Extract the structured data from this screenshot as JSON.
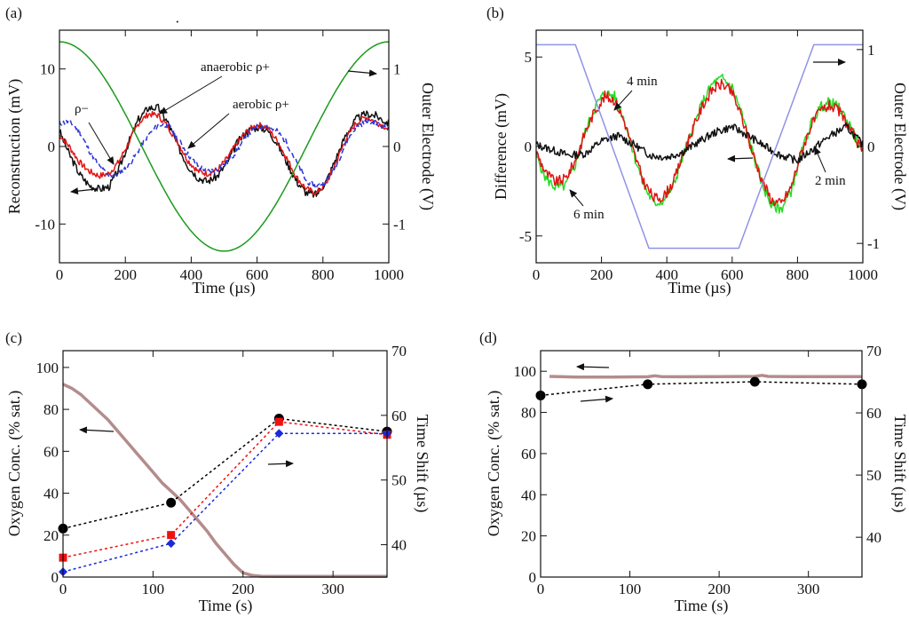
{
  "figure": {
    "title": ""
  },
  "chart_data": [
    {
      "id": "a",
      "type": "line",
      "panel_label": "(a)",
      "xlabel": "Time (µs)",
      "ylabel_left": "Reconstruction (mV)",
      "ylabel_right": "Outer Electrode (V)",
      "xlim": [
        0,
        1000
      ],
      "ylim_left": [
        -15,
        15
      ],
      "ylim_right": [
        -1.5,
        1.5
      ],
      "xticks": [
        0,
        200,
        400,
        600,
        800,
        1000
      ],
      "xtick_labels": [
        "0",
        "200",
        "400",
        "600",
        "800",
        "1000"
      ],
      "yticks_left": [
        -10,
        0,
        10
      ],
      "ytick_labels_left": [
        "-10",
        "0",
        "10"
      ],
      "yticks_right": [
        -1,
        0,
        1
      ],
      "ytick_labels_right": [
        "-1",
        "0",
        "1"
      ],
      "series": [
        {
          "name": "anaerobic ρ+",
          "axis": "left",
          "color": "#111111",
          "dash": "",
          "noise": 0.5,
          "seed": 3,
          "x": [
            0,
            30,
            60,
            90,
            120,
            150,
            180,
            210,
            240,
            270,
            300,
            330,
            360,
            390,
            420,
            450,
            480,
            510,
            540,
            570,
            600,
            630,
            660,
            690,
            720,
            750,
            780,
            810,
            840,
            870,
            900,
            930,
            960,
            990,
            1000
          ],
          "y": [
            2,
            -1,
            -3.5,
            -5,
            -5.5,
            -5.2,
            -3,
            0.5,
            3.5,
            5,
            5,
            3,
            0,
            -2.5,
            -4,
            -4.5,
            -3.8,
            -2,
            0.5,
            2,
            2.5,
            2.2,
            0.5,
            -2,
            -4.5,
            -6,
            -6.2,
            -4.5,
            -1.5,
            1.5,
            3.5,
            4.2,
            4,
            3.2,
            3
          ]
        },
        {
          "name": "red",
          "axis": "left",
          "color": "#e01414",
          "dash": "",
          "noise": 0.4,
          "seed": 7,
          "x": [
            0,
            30,
            60,
            90,
            120,
            150,
            180,
            210,
            240,
            270,
            300,
            330,
            360,
            390,
            420,
            450,
            480,
            510,
            540,
            570,
            600,
            630,
            660,
            690,
            720,
            750,
            780,
            810,
            840,
            870,
            900,
            930,
            960,
            990,
            1000
          ],
          "y": [
            1.5,
            0,
            -2,
            -3.2,
            -3.8,
            -3.5,
            -2,
            0.5,
            3,
            4.2,
            4,
            2.5,
            0.5,
            -1.8,
            -3.2,
            -3.5,
            -3,
            -1.5,
            0.5,
            2,
            2.8,
            2.5,
            0.8,
            -1.5,
            -4,
            -5.5,
            -6,
            -4.8,
            -2,
            1,
            3,
            3.8,
            3.2,
            2.5,
            2
          ]
        },
        {
          "name": "aerobic ρ+",
          "axis": "left",
          "color": "#2a35d6",
          "dash": "6,3",
          "noise": 0.35,
          "seed": 11,
          "x": [
            0,
            30,
            60,
            90,
            120,
            150,
            180,
            210,
            240,
            270,
            300,
            330,
            360,
            390,
            420,
            450,
            480,
            510,
            540,
            570,
            600,
            630,
            660,
            690,
            720,
            750,
            780,
            810,
            840,
            870,
            900,
            930,
            960,
            990,
            1000
          ],
          "y": [
            3,
            3.2,
            2,
            -0.5,
            -2.5,
            -3.8,
            -3.5,
            -2.5,
            -0.5,
            1.5,
            2.8,
            2.8,
            1,
            -1,
            -2.5,
            -3.2,
            -3,
            -2,
            -0.5,
            1.5,
            2.5,
            2.6,
            2,
            0.5,
            -2,
            -4.5,
            -5.2,
            -4.5,
            -2.5,
            0.5,
            2.5,
            3.2,
            3,
            2.5,
            2.2
          ]
        },
        {
          "name": "outer electrode",
          "axis": "right",
          "color": "#1c9a1c",
          "dash": "",
          "func": "cos",
          "amp": 1.35,
          "period": 1000,
          "phase": 0
        }
      ],
      "annotations": [
        {
          "text": "anaerobic ρ+"
        },
        {
          "text": "aerobic ρ+"
        },
        {
          "text": "ρ−"
        }
      ]
    },
    {
      "id": "b",
      "type": "line",
      "panel_label": "(b)",
      "xlabel": "Time (µs)",
      "ylabel_left": "Difference (mV)",
      "ylabel_right": "Outer Electrode (V)",
      "xlim": [
        0,
        1000
      ],
      "ylim_left": [
        -6.5,
        6.5
      ],
      "ylim_right": [
        -1.2,
        1.2
      ],
      "xticks": [
        0,
        200,
        400,
        600,
        800,
        1000
      ],
      "xtick_labels": [
        "0",
        "200",
        "400",
        "600",
        "800",
        "1000"
      ],
      "yticks_left": [
        -5,
        0,
        5
      ],
      "ytick_labels_left": [
        "-5",
        "0",
        "5"
      ],
      "yticks_right": [
        -1,
        0,
        1
      ],
      "ytick_labels_right": [
        "-1",
        "0",
        "1"
      ],
      "series": [
        {
          "name": "6 min",
          "axis": "left",
          "color": "#22dd22",
          "dash": "",
          "noise": 0.3,
          "seed": 5,
          "x": [
            0,
            30,
            60,
            90,
            120,
            150,
            180,
            210,
            240,
            270,
            300,
            330,
            360,
            390,
            420,
            450,
            480,
            510,
            540,
            570,
            600,
            630,
            660,
            690,
            720,
            750,
            780,
            810,
            840,
            870,
            900,
            930,
            960,
            990,
            1000
          ],
          "y": [
            -0.5,
            -1.8,
            -2.3,
            -2.2,
            -1,
            0.8,
            2.2,
            3,
            2.8,
            1.5,
            -0.5,
            -2.2,
            -3.2,
            -3,
            -2.2,
            -0.5,
            1,
            2.5,
            3.5,
            3.8,
            3.3,
            1.8,
            -0.2,
            -2,
            -3.3,
            -3.5,
            -2.5,
            -0.5,
            1.2,
            2.2,
            2.5,
            2.1,
            1.2,
            0,
            -0.5
          ]
        },
        {
          "name": "4 min",
          "axis": "left",
          "color": "#e01414",
          "dash": "",
          "noise": 0.3,
          "seed": 9,
          "x": [
            0,
            30,
            60,
            90,
            120,
            150,
            180,
            210,
            240,
            270,
            300,
            330,
            360,
            390,
            420,
            450,
            480,
            510,
            540,
            570,
            600,
            630,
            660,
            690,
            720,
            750,
            780,
            810,
            840,
            870,
            900,
            930,
            960,
            990,
            1000
          ],
          "y": [
            -0.3,
            -1.5,
            -2,
            -1.8,
            -0.8,
            0.8,
            2,
            2.8,
            2.6,
            1.4,
            -0.4,
            -2,
            -2.9,
            -2.8,
            -2,
            -0.4,
            1,
            2.3,
            3.2,
            3.5,
            3,
            1.6,
            -0.2,
            -1.8,
            -3,
            -3.2,
            -2.3,
            -0.4,
            1.1,
            2,
            2.3,
            1.9,
            1,
            0,
            -0.4
          ]
        },
        {
          "name": "2 min",
          "axis": "left",
          "color": "#111111",
          "dash": "",
          "noise": 0.22,
          "seed": 13,
          "x": [
            0,
            50,
            100,
            150,
            200,
            250,
            300,
            350,
            400,
            450,
            500,
            550,
            600,
            650,
            700,
            750,
            800,
            850,
            900,
            950,
            1000
          ],
          "y": [
            0.1,
            -0.2,
            -0.5,
            -0.4,
            0.3,
            0.6,
            0.1,
            -0.5,
            -0.6,
            -0.3,
            0.3,
            0.8,
            1.1,
            0.6,
            0,
            -0.5,
            -0.8,
            -0.1,
            0.6,
            1.1,
            0.1
          ]
        },
        {
          "name": "outer electrode",
          "axis": "right",
          "color": "#8f93e6",
          "dash": "",
          "x": [
            0,
            120,
            345,
            620,
            850,
            1000
          ],
          "y": [
            1.05,
            1.05,
            -1.05,
            -1.05,
            1.05,
            1.05
          ]
        }
      ],
      "annotations": [
        {
          "text": "4 min"
        },
        {
          "text": "6 min"
        },
        {
          "text": "2 min"
        }
      ]
    },
    {
      "id": "c",
      "type": "line",
      "panel_label": "(c)",
      "xlabel": "Time (s)",
      "ylabel_left": "Oxygen Conc. (% sat.)",
      "ylabel_right": "Time Shift (µs)",
      "xlim": [
        0,
        360
      ],
      "ylim_left": [
        0,
        108
      ],
      "ylim_right": [
        35,
        70
      ],
      "xticks": [
        0,
        100,
        200,
        300
      ],
      "xtick_labels": [
        "0",
        "100",
        "200",
        "300"
      ],
      "yticks_left": [
        0,
        20,
        40,
        60,
        80,
        100
      ],
      "ytick_labels_left": [
        "0",
        "20",
        "40",
        "60",
        "80",
        "100"
      ],
      "yticks_right": [
        40,
        50,
        60,
        70
      ],
      "ytick_labels_right": [
        "40",
        "50",
        "60",
        "70"
      ],
      "series": [
        {
          "name": "oxygen",
          "axis": "left",
          "color": "#b48c8c",
          "dash": "",
          "width": 3.5,
          "x": [
            0,
            10,
            20,
            30,
            40,
            50,
            60,
            70,
            80,
            90,
            100,
            110,
            120,
            130,
            140,
            150,
            160,
            170,
            180,
            190,
            200,
            210,
            220,
            240,
            260,
            280,
            300,
            320,
            340,
            360
          ],
          "y": [
            92,
            90,
            87,
            83,
            79,
            75,
            70,
            65,
            60,
            55,
            50,
            45,
            41,
            37,
            32,
            27,
            22,
            16,
            11,
            6,
            2,
            0.8,
            0.4,
            0.3,
            0.3,
            0.3,
            0.3,
            0.3,
            0.3,
            0.3
          ]
        },
        {
          "name": "black",
          "axis": "right",
          "color": "#000000",
          "dash": "3,3",
          "marker": "circle",
          "x": [
            0,
            120,
            240,
            360
          ],
          "y": [
            42.5,
            46.5,
            59.5,
            57.5
          ]
        },
        {
          "name": "red",
          "axis": "right",
          "color": "#ee1111",
          "dash": "3,3",
          "marker": "square",
          "x": [
            0,
            120,
            240,
            360
          ],
          "y": [
            38,
            41.5,
            59,
            57
          ]
        },
        {
          "name": "blue",
          "axis": "right",
          "color": "#1a2ad8",
          "dash": "3,3",
          "marker": "diamond",
          "x": [
            0,
            120,
            240,
            360
          ],
          "y": [
            35.8,
            40.2,
            57.2,
            57.2
          ]
        }
      ]
    },
    {
      "id": "d",
      "type": "line",
      "panel_label": "(d)",
      "xlabel": "Time (s)",
      "ylabel_left": "Oxygen Conc. (% sat.)",
      "ylabel_right": "Time Shift (µs)",
      "xlim": [
        0,
        360
      ],
      "ylim_left": [
        0,
        110
      ],
      "ylim_right": [
        33.6,
        70
      ],
      "xticks": [
        0,
        100,
        200,
        300
      ],
      "xtick_labels": [
        "0",
        "100",
        "200",
        "300"
      ],
      "yticks_left": [
        0,
        20,
        40,
        60,
        80,
        100
      ],
      "ytick_labels_left": [
        "0",
        "20",
        "40",
        "60",
        "80",
        "100"
      ],
      "yticks_right": [
        40,
        50,
        60,
        70
      ],
      "ytick_labels_right": [
        "40",
        "50",
        "60",
        "70"
      ],
      "series": [
        {
          "name": "oxygen",
          "axis": "left",
          "color": "#b48c8c",
          "dash": "",
          "width": 3.5,
          "x": [
            10,
            40,
            80,
            120,
            128,
            135,
            160,
            200,
            240,
            248,
            255,
            280,
            320,
            360
          ],
          "y": [
            97.5,
            97.2,
            97.2,
            97.3,
            97.8,
            97.4,
            97.3,
            97.4,
            97.5,
            98,
            97.5,
            97.4,
            97.4,
            97.4
          ]
        },
        {
          "name": "black",
          "axis": "right",
          "color": "#000000",
          "dash": "3,3",
          "marker": "circle",
          "x": [
            0,
            120,
            240,
            360
          ],
          "y": [
            62.8,
            64.6,
            65,
            64.6
          ]
        }
      ]
    }
  ]
}
